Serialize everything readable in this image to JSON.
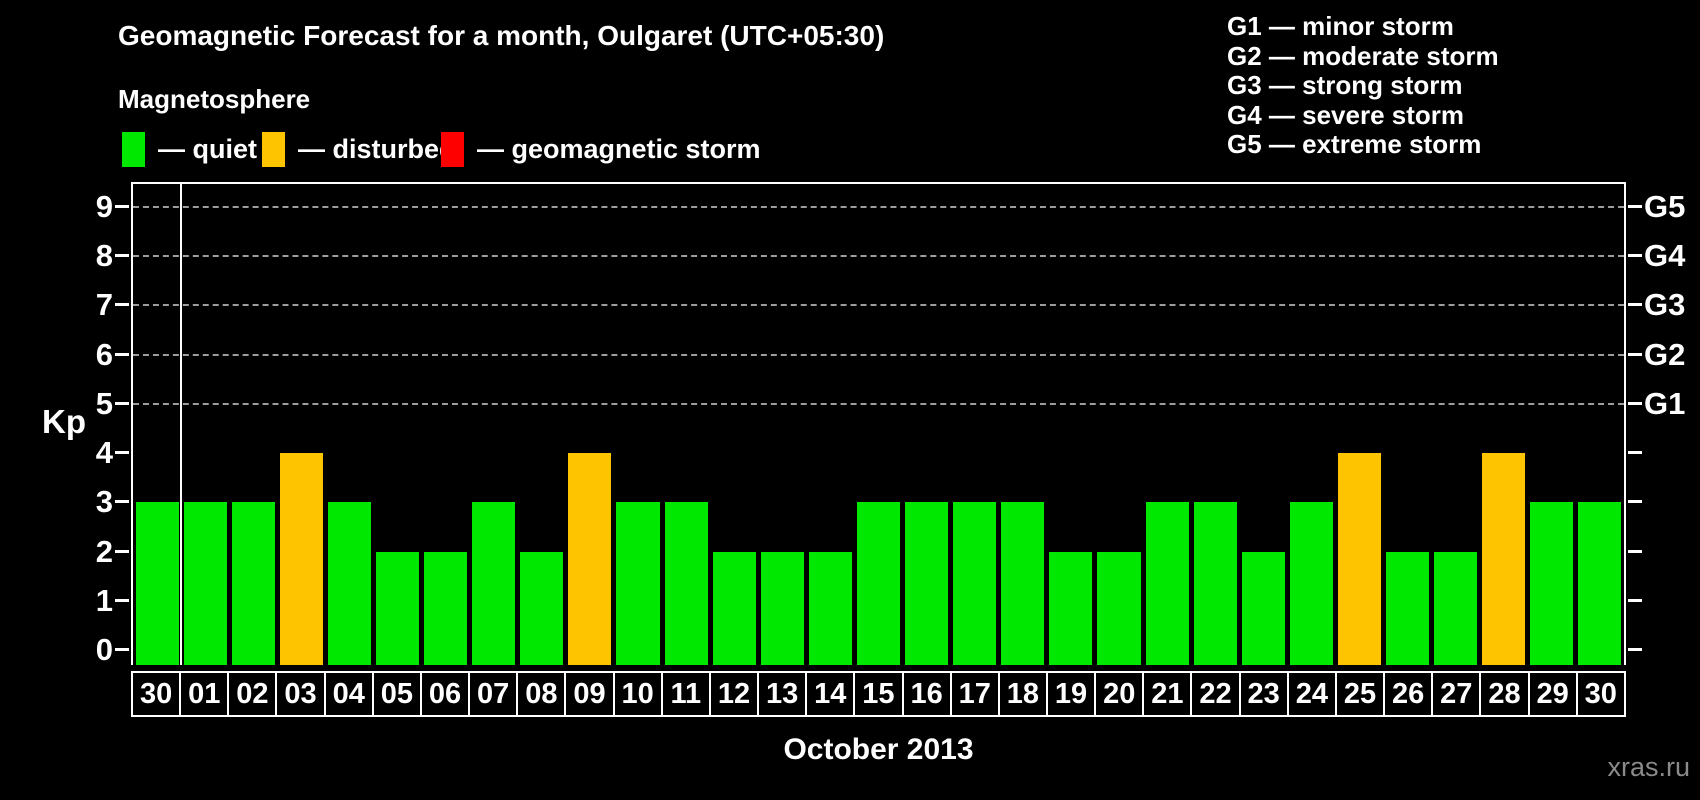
{
  "header": {
    "title": "Geomagnetic Forecast for a month, Oulgaret (UTC+05:30)",
    "subtitle": "Magnetosphere"
  },
  "magnetosphere_legend": [
    {
      "key": "quiet",
      "label": "— quiet",
      "color": "#00e800"
    },
    {
      "key": "disturbed",
      "label": "— disturbed",
      "color": "#ffc400"
    },
    {
      "key": "storm",
      "label": "— geomagnetic storm",
      "color": "#ff0000"
    }
  ],
  "storm_scale_legend": [
    "G1 — minor storm",
    "G2 — moderate storm",
    "G3 — strong storm",
    "G4 — severe storm",
    "G5 — extreme storm"
  ],
  "chart_data": {
    "type": "bar",
    "title": "Geomagnetic Forecast for a month, Oulgaret (UTC+05:30)",
    "ylabel": "Kp",
    "xlabel": "October 2013",
    "ylim": [
      0,
      9
    ],
    "yticks": [
      0,
      1,
      2,
      3,
      4,
      5,
      6,
      7,
      8,
      9
    ],
    "gridlines_at": [
      5,
      6,
      7,
      8,
      9
    ],
    "right_axis_labels": [
      {
        "label": "G1",
        "kp": 5
      },
      {
        "label": "G2",
        "kp": 6
      },
      {
        "label": "G3",
        "kp": 7
      },
      {
        "label": "G4",
        "kp": 8
      },
      {
        "label": "G5",
        "kp": 9
      }
    ],
    "grid_style": "dashed",
    "legend_position": "top-left",
    "categories": [
      "30",
      "01",
      "02",
      "03",
      "04",
      "05",
      "06",
      "07",
      "08",
      "09",
      "10",
      "11",
      "12",
      "13",
      "14",
      "15",
      "16",
      "17",
      "18",
      "19",
      "20",
      "21",
      "22",
      "23",
      "24",
      "25",
      "26",
      "27",
      "28",
      "29",
      "30"
    ],
    "values": [
      3,
      3,
      3,
      4,
      3,
      2,
      2,
      3,
      2,
      4,
      3,
      3,
      2,
      2,
      2,
      3,
      3,
      3,
      3,
      2,
      2,
      3,
      3,
      2,
      3,
      4,
      2,
      2,
      4,
      3,
      3
    ],
    "status": [
      "quiet",
      "quiet",
      "quiet",
      "disturbed",
      "quiet",
      "quiet",
      "quiet",
      "quiet",
      "quiet",
      "disturbed",
      "quiet",
      "quiet",
      "quiet",
      "quiet",
      "quiet",
      "quiet",
      "quiet",
      "quiet",
      "quiet",
      "quiet",
      "quiet",
      "quiet",
      "quiet",
      "quiet",
      "quiet",
      "disturbed",
      "quiet",
      "quiet",
      "disturbed",
      "quiet",
      "quiet"
    ],
    "bar_colors": {
      "quiet": "#00e800",
      "disturbed": "#ffc400",
      "storm": "#ff0000"
    },
    "separator_after_index": 0
  },
  "watermark": "xras.ru",
  "colors": {
    "background": "#000000",
    "axis": "#ffffff",
    "gridline": "#9d9d9d",
    "text": "#ffffff",
    "watermark_text": "#8a8a8a"
  }
}
